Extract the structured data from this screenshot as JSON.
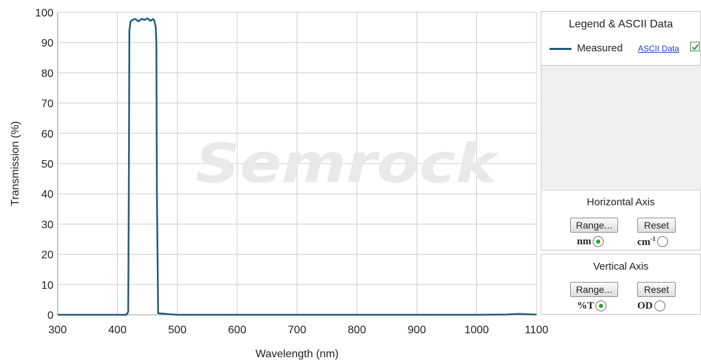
{
  "chart_data": {
    "type": "line",
    "xlabel": "Wavelength (nm)",
    "ylabel": "Transmission (%)",
    "xlim": [
      300,
      1100
    ],
    "ylim": [
      0,
      100
    ],
    "x_ticks": [
      300,
      400,
      500,
      600,
      700,
      800,
      900,
      1000,
      1100
    ],
    "y_ticks": [
      0,
      10,
      20,
      30,
      40,
      50,
      60,
      70,
      80,
      90,
      100
    ],
    "grid": true,
    "series": [
      {
        "name": "Measured",
        "color": "#1f5a7a",
        "x": [
          300,
          400,
          415,
          418,
          419,
          420,
          422,
          425,
          430,
          435,
          440,
          445,
          450,
          455,
          460,
          462,
          464,
          465,
          466,
          468,
          500,
          600,
          700,
          800,
          900,
          1000,
          1050,
          1060,
          1070,
          1080,
          1100
        ],
        "y": [
          0,
          0,
          0,
          1,
          40,
          94,
          97,
          97.5,
          97.8,
          97,
          97.8,
          97.5,
          98,
          97.2,
          97.8,
          97,
          95,
          90,
          40,
          0.5,
          0,
          0,
          0,
          0,
          0,
          0,
          0.1,
          0.2,
          0.3,
          0.2,
          0.1
        ]
      }
    ]
  },
  "watermark": "Semrock",
  "legend_panel": {
    "title": "Legend & ASCII Data",
    "items": [
      {
        "label": "Measured",
        "link": "ASCII Data",
        "checked": true
      }
    ]
  },
  "horizontal_axis_panel": {
    "title": "Horizontal Axis",
    "range_label": "Range...",
    "reset_label": "Reset",
    "option_a": "nm",
    "option_b": "cm",
    "option_b_sup": "-1",
    "selected": "nm"
  },
  "vertical_axis_panel": {
    "title": "Vertical  Axis",
    "range_label": "Range...",
    "reset_label": "Reset",
    "option_a": "%T",
    "option_b": "OD",
    "selected": "%T"
  }
}
